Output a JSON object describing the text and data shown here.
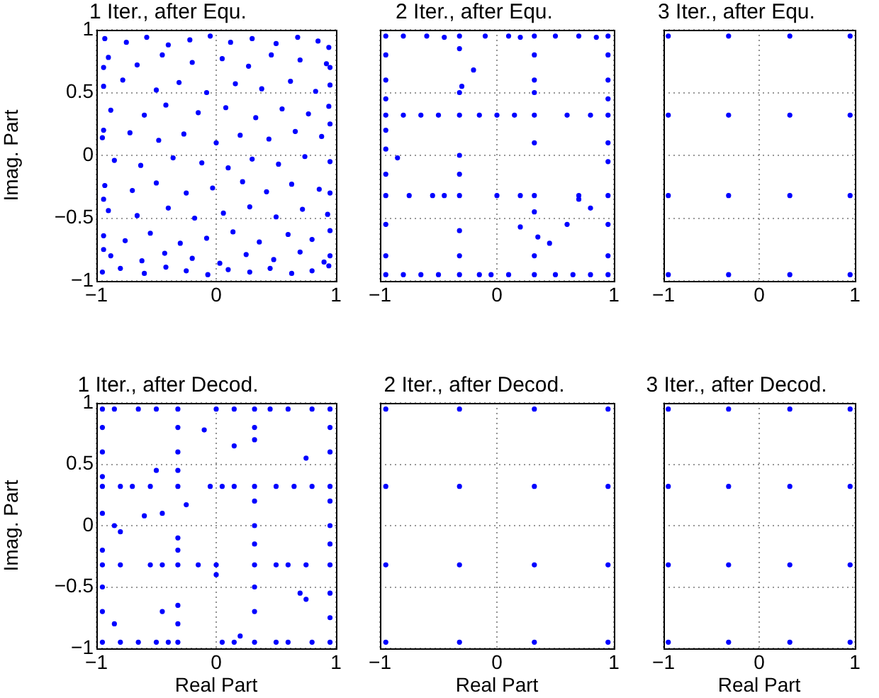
{
  "chart_data": [
    {
      "type": "scatter",
      "title": "1 Iter., after Equ.",
      "ylabel": "Imag. Part",
      "color": "#0000ff",
      "marker": "circle",
      "grid": true,
      "xlim": [
        -1,
        1
      ],
      "ylim": [
        -1,
        1
      ],
      "xticks": [
        -1,
        0,
        1
      ],
      "yticks": [
        -1,
        -0.5,
        0,
        0.5,
        1
      ],
      "x": [
        -0.93,
        -0.75,
        -0.58,
        -0.4,
        -0.22,
        -0.05,
        0.12,
        0.3,
        0.5,
        0.68,
        0.85,
        0.94,
        -0.9,
        -0.66,
        -0.45,
        -0.2,
        0.05,
        0.27,
        0.46,
        0.7,
        0.92,
        -0.94,
        -0.78,
        -0.5,
        -0.31,
        -0.08,
        0.16,
        0.38,
        0.62,
        0.83,
        0.95,
        -0.88,
        -0.6,
        -0.42,
        -0.15,
        0.08,
        0.33,
        0.55,
        0.77,
        0.94,
        -0.95,
        -0.72,
        -0.48,
        -0.27,
        0.0,
        0.2,
        0.44,
        0.66,
        0.88,
        -0.85,
        -0.63,
        -0.36,
        -0.12,
        0.1,
        0.3,
        0.52,
        0.74,
        0.95,
        -0.93,
        -0.7,
        -0.5,
        -0.25,
        -0.03,
        0.22,
        0.42,
        0.63,
        0.86,
        -0.9,
        -0.66,
        -0.4,
        -0.18,
        0.06,
        0.28,
        0.5,
        0.72,
        0.93,
        -0.94,
        -0.76,
        -0.55,
        -0.3,
        -0.08,
        0.14,
        0.36,
        0.6,
        0.8,
        0.95,
        -0.88,
        -0.62,
        -0.43,
        -0.2,
        0.03,
        0.25,
        0.48,
        0.7,
        0.9,
        -0.95,
        -0.8,
        -0.6,
        -0.42,
        -0.25,
        -0.07,
        0.1,
        0.28,
        0.45,
        0.63,
        0.8,
        0.94,
        -0.94,
        -0.94,
        -0.94,
        -0.94,
        0.95,
        0.95,
        0.95,
        0.95
      ],
      "values": [
        0.93,
        0.9,
        0.94,
        0.88,
        0.92,
        0.95,
        0.9,
        0.93,
        0.89,
        0.94,
        0.91,
        0.86,
        0.78,
        0.72,
        0.8,
        0.74,
        0.77,
        0.71,
        0.8,
        0.76,
        0.73,
        0.55,
        0.6,
        0.52,
        0.58,
        0.5,
        0.57,
        0.53,
        0.59,
        0.51,
        0.56,
        0.36,
        0.32,
        0.4,
        0.34,
        0.38,
        0.3,
        0.37,
        0.33,
        0.39,
        0.14,
        0.18,
        0.12,
        0.17,
        0.1,
        0.16,
        0.13,
        0.19,
        0.15,
        -0.04,
        -0.08,
        -0.02,
        -0.06,
        -0.1,
        -0.03,
        -0.07,
        -0.01,
        -0.05,
        -0.24,
        -0.28,
        -0.22,
        -0.3,
        -0.26,
        -0.21,
        -0.29,
        -0.23,
        -0.27,
        -0.44,
        -0.48,
        -0.42,
        -0.5,
        -0.46,
        -0.41,
        -0.49,
        -0.43,
        -0.47,
        -0.64,
        -0.68,
        -0.62,
        -0.7,
        -0.66,
        -0.61,
        -0.69,
        -0.63,
        -0.67,
        -0.6,
        -0.8,
        -0.84,
        -0.78,
        -0.82,
        -0.86,
        -0.79,
        -0.83,
        -0.77,
        -0.85,
        -0.93,
        -0.9,
        -0.94,
        -0.89,
        -0.92,
        -0.95,
        -0.91,
        -0.93,
        -0.9,
        -0.94,
        -0.92,
        -0.88,
        0.7,
        0.2,
        -0.35,
        -0.75,
        0.7,
        0.25,
        -0.3,
        -0.8
      ]
    },
    {
      "type": "scatter",
      "title": "2 Iter., after Equ.",
      "color": "#0000ff",
      "marker": "circle",
      "grid": true,
      "tick_labels": "x",
      "xlim": [
        -1,
        1
      ],
      "ylim": [
        -1,
        1
      ],
      "xticks": [
        -1,
        0,
        1
      ],
      "yticks": [
        -1,
        -0.5,
        0,
        0.5,
        1
      ],
      "x": [
        -0.95,
        -0.32,
        0.32,
        0.95,
        -0.95,
        -0.32,
        0.32,
        0.95,
        -0.95,
        -0.32,
        0.32,
        0.95,
        -0.95,
        -0.32,
        0.32,
        0.95,
        -0.8,
        -0.6,
        -0.45,
        -0.1,
        0.1,
        0.2,
        0.5,
        0.7,
        0.85,
        -0.95,
        -0.95,
        -0.95,
        -0.95,
        -0.95,
        -0.95,
        -0.95,
        -0.95,
        -0.32,
        -0.32,
        -0.32,
        -0.32,
        -0.32,
        -0.32,
        0.32,
        0.32,
        0.32,
        0.32,
        0.32,
        0.32,
        0.95,
        0.95,
        0.95,
        0.95,
        0.95,
        0.95,
        0.95,
        -0.8,
        -0.65,
        -0.5,
        -0.15,
        0.0,
        0.15,
        0.6,
        0.8,
        -0.75,
        -0.55,
        -0.45,
        0.0,
        0.2,
        0.7,
        -0.8,
        -0.65,
        -0.5,
        -0.15,
        -0.05,
        0.1,
        0.5,
        0.65,
        0.8,
        -0.2,
        -0.3,
        -0.85,
        0.2,
        0.45,
        0.6,
        0.35,
        0.8,
        0.7
      ],
      "values": [
        0.95,
        0.95,
        0.95,
        0.95,
        0.32,
        0.32,
        0.32,
        0.32,
        -0.32,
        -0.32,
        -0.32,
        -0.32,
        -0.95,
        -0.95,
        -0.95,
        -0.95,
        0.95,
        0.95,
        0.94,
        0.95,
        0.95,
        0.94,
        0.95,
        0.95,
        0.94,
        0.8,
        0.6,
        0.45,
        0.2,
        0.05,
        -0.15,
        -0.55,
        -0.8,
        0.85,
        0.5,
        0.0,
        -0.15,
        -0.6,
        -0.8,
        0.8,
        0.6,
        0.5,
        0.1,
        -0.45,
        -0.8,
        0.8,
        0.6,
        0.45,
        0.1,
        -0.05,
        -0.55,
        -0.8,
        0.32,
        0.32,
        0.32,
        0.32,
        0.32,
        0.32,
        0.32,
        0.32,
        -0.32,
        -0.32,
        -0.32,
        -0.32,
        -0.32,
        -0.32,
        -0.95,
        -0.95,
        -0.95,
        -0.95,
        -0.95,
        -0.95,
        -0.95,
        -0.95,
        -0.95,
        0.68,
        0.55,
        -0.02,
        -0.57,
        -0.7,
        -0.55,
        -0.65,
        -0.42,
        -0.35
      ]
    },
    {
      "type": "scatter",
      "title": "3 Iter., after Equ.",
      "color": "#0000ff",
      "marker": "circle",
      "grid": true,
      "tick_labels": "x",
      "xlim": [
        -1,
        1
      ],
      "ylim": [
        -1,
        1
      ],
      "xticks": [
        -1,
        0,
        1
      ],
      "yticks": [
        -1,
        -0.5,
        0,
        0.5,
        1
      ],
      "x": [
        -0.95,
        -0.32,
        0.32,
        0.95,
        -0.95,
        -0.32,
        0.32,
        0.95,
        -0.95,
        -0.32,
        0.32,
        0.95,
        -0.95,
        -0.32,
        0.32,
        0.95
      ],
      "values": [
        0.95,
        0.95,
        0.95,
        0.95,
        0.32,
        0.32,
        0.32,
        0.32,
        -0.32,
        -0.32,
        -0.32,
        -0.32,
        -0.95,
        -0.95,
        -0.95,
        -0.95
      ]
    },
    {
      "type": "scatter",
      "title": "1 Iter., after Decod.",
      "xlabel": "Real Part",
      "ylabel": "Imag. Part",
      "color": "#0000ff",
      "marker": "circle",
      "grid": true,
      "xlim": [
        -1,
        1
      ],
      "ylim": [
        -1,
        1
      ],
      "xticks": [
        -1,
        0,
        1
      ],
      "yticks": [
        -1,
        -0.5,
        0,
        0.5,
        1
      ],
      "x": [
        -0.95,
        -0.32,
        0.32,
        0.95,
        -0.95,
        -0.32,
        0.32,
        0.95,
        -0.95,
        -0.32,
        0.32,
        0.95,
        -0.95,
        -0.32,
        0.32,
        0.95,
        -0.85,
        -0.65,
        -0.5,
        0.0,
        0.15,
        0.45,
        0.6,
        0.8,
        -0.95,
        -0.95,
        -0.95,
        -0.95,
        -0.95,
        -0.95,
        -0.95,
        -0.32,
        -0.32,
        -0.32,
        -0.32,
        -0.32,
        -0.32,
        -0.32,
        0.32,
        0.32,
        0.32,
        0.32,
        0.32,
        0.32,
        0.32,
        0.95,
        0.95,
        0.95,
        0.95,
        0.95,
        0.95,
        0.95,
        -0.8,
        -0.7,
        -0.55,
        -0.05,
        0.05,
        0.15,
        0.5,
        0.65,
        0.8,
        -0.8,
        -0.55,
        -0.45,
        -0.15,
        0.0,
        0.5,
        0.6,
        0.75,
        -0.8,
        -0.65,
        -0.5,
        -0.4,
        0.05,
        0.15,
        0.5,
        0.6,
        0.8,
        -0.1,
        0.15,
        -0.5,
        -0.45,
        -0.6,
        -0.25,
        0.75,
        -0.85,
        -0.8,
        0.0,
        -0.45,
        0.7,
        0.75,
        -0.85,
        0.2
      ],
      "values": [
        0.95,
        0.95,
        0.95,
        0.95,
        0.32,
        0.32,
        0.32,
        0.32,
        -0.32,
        -0.32,
        -0.32,
        -0.32,
        -0.95,
        -0.95,
        -0.95,
        -0.95,
        0.95,
        0.95,
        0.95,
        0.95,
        0.95,
        0.95,
        0.95,
        0.95,
        0.8,
        0.6,
        0.4,
        0.1,
        -0.2,
        -0.5,
        -0.7,
        0.8,
        0.6,
        0.45,
        -0.1,
        -0.2,
        -0.65,
        -0.8,
        0.8,
        0.7,
        0.2,
        0.0,
        -0.15,
        -0.5,
        -0.7,
        0.8,
        0.6,
        0.2,
        0.0,
        -0.15,
        -0.55,
        -0.75,
        0.32,
        0.32,
        0.32,
        0.32,
        0.32,
        0.32,
        0.32,
        0.32,
        0.32,
        -0.32,
        -0.32,
        -0.32,
        -0.32,
        -0.32,
        -0.32,
        -0.32,
        -0.32,
        -0.95,
        -0.95,
        -0.95,
        -0.95,
        -0.95,
        -0.95,
        -0.95,
        -0.95,
        -0.95,
        0.78,
        0.65,
        0.45,
        0.1,
        0.08,
        0.17,
        0.55,
        0.0,
        -0.05,
        -0.4,
        -0.7,
        -0.55,
        -0.6,
        -0.8,
        -0.9
      ]
    },
    {
      "type": "scatter",
      "title": "2 Iter., after Decod.",
      "xlabel": "Real Part",
      "color": "#0000ff",
      "marker": "circle",
      "grid": true,
      "tick_labels": "x",
      "xlim": [
        -1,
        1
      ],
      "ylim": [
        -1,
        1
      ],
      "xticks": [
        -1,
        0,
        1
      ],
      "yticks": [
        -1,
        -0.5,
        0,
        0.5,
        1
      ],
      "x": [
        -0.95,
        -0.32,
        0.32,
        0.95,
        -0.95,
        -0.32,
        0.32,
        0.95,
        -0.95,
        -0.32,
        0.32,
        0.95,
        -0.95,
        -0.32,
        0.32,
        0.95
      ],
      "values": [
        0.95,
        0.95,
        0.95,
        0.95,
        0.32,
        0.32,
        0.32,
        0.32,
        -0.32,
        -0.32,
        -0.32,
        -0.32,
        -0.95,
        -0.95,
        -0.95,
        -0.95
      ]
    },
    {
      "type": "scatter",
      "title": "3 Iter., after Decod.",
      "xlabel": "Real Part",
      "color": "#0000ff",
      "marker": "circle",
      "grid": true,
      "tick_labels": "x",
      "xlim": [
        -1,
        1
      ],
      "ylim": [
        -1,
        1
      ],
      "xticks": [
        -1,
        0,
        1
      ],
      "yticks": [
        -1,
        -0.5,
        0,
        0.5,
        1
      ],
      "x": [
        -0.95,
        -0.32,
        0.32,
        0.95,
        -0.95,
        -0.32,
        0.32,
        0.95,
        -0.95,
        -0.32,
        0.32,
        0.95,
        -0.95,
        -0.32,
        0.32,
        0.95
      ],
      "values": [
        0.95,
        0.95,
        0.95,
        0.95,
        0.32,
        0.32,
        0.32,
        0.32,
        -0.32,
        -0.32,
        -0.32,
        -0.32,
        -0.95,
        -0.95,
        -0.95,
        -0.95
      ]
    }
  ]
}
